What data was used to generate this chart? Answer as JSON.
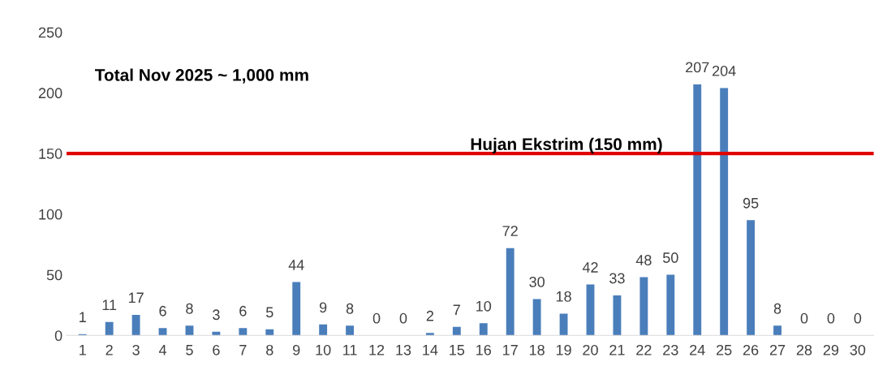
{
  "chart_data": {
    "type": "bar",
    "categories": [
      "1",
      "2",
      "3",
      "4",
      "5",
      "6",
      "7",
      "8",
      "9",
      "10",
      "11",
      "12",
      "13",
      "14",
      "15",
      "16",
      "17",
      "18",
      "19",
      "20",
      "21",
      "22",
      "23",
      "24",
      "25",
      "26",
      "27",
      "28",
      "29",
      "30"
    ],
    "values": [
      1,
      11,
      17,
      6,
      8,
      3,
      6,
      5,
      44,
      9,
      8,
      0,
      0,
      2,
      7,
      10,
      72,
      30,
      18,
      42,
      33,
      48,
      50,
      207,
      204,
      95,
      8,
      0,
      0,
      0
    ],
    "color": "#4a7ebb",
    "ylim": [
      0,
      250
    ],
    "yticks": [
      0,
      50,
      100,
      150,
      200,
      250
    ],
    "grid": false,
    "data_labels": true,
    "ref_lines": [
      {
        "axis": "y",
        "value": 150,
        "label": "Hujan Ekstrim (150 mm)",
        "color": "#e00000",
        "line_style": "solid"
      }
    ],
    "annotations": [
      "Total Nov 2025 ~ 1,000 mm"
    ]
  }
}
